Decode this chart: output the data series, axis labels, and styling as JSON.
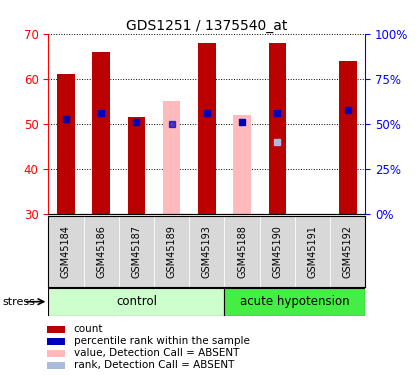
{
  "title": "GDS1251 / 1375540_at",
  "samples": [
    "GSM45184",
    "GSM45186",
    "GSM45187",
    "GSM45189",
    "GSM45193",
    "GSM45188",
    "GSM45190",
    "GSM45191",
    "GSM45192"
  ],
  "control_count": 5,
  "red_bar_heights": [
    61,
    66,
    51.5,
    30,
    68,
    30,
    68,
    30,
    64
  ],
  "pink_bar_heights": [
    0,
    0,
    0,
    55,
    0,
    52,
    0,
    0,
    0
  ],
  "blue_dot_y": [
    51,
    52.5,
    50.5,
    0,
    52.5,
    50.5,
    52.5,
    0,
    53
  ],
  "blue_absent_dot_y": [
    0,
    0,
    0,
    50,
    0,
    0,
    0,
    0,
    0
  ],
  "light_blue_dot": {
    "index": 6,
    "y": 46
  },
  "y_min": 30,
  "y_max": 70,
  "y_ticks": [
    30,
    40,
    50,
    60,
    70
  ],
  "y2_ticks": [
    0,
    25,
    50,
    75,
    100
  ],
  "y2_labels": [
    "0%",
    "25%",
    "50%",
    "75%",
    "100%"
  ],
  "red_color": "#BB0000",
  "pink_color": "#FFBBBB",
  "blue_color": "#0000BB",
  "light_blue_color": "#AABBDD",
  "bar_width": 0.5,
  "control_bg": "#CCFFCC",
  "hypotension_bg": "#44EE44",
  "group_label_control": "control",
  "group_label_hypotension": "acute hypotension",
  "stress_label": "stress",
  "legend_items": [
    {
      "label": "count",
      "color": "#BB0000"
    },
    {
      "label": "percentile rank within the sample",
      "color": "#0000BB"
    },
    {
      "label": "value, Detection Call = ABSENT",
      "color": "#FFBBBB"
    },
    {
      "label": "rank, Detection Call = ABSENT",
      "color": "#AABBDD"
    }
  ]
}
